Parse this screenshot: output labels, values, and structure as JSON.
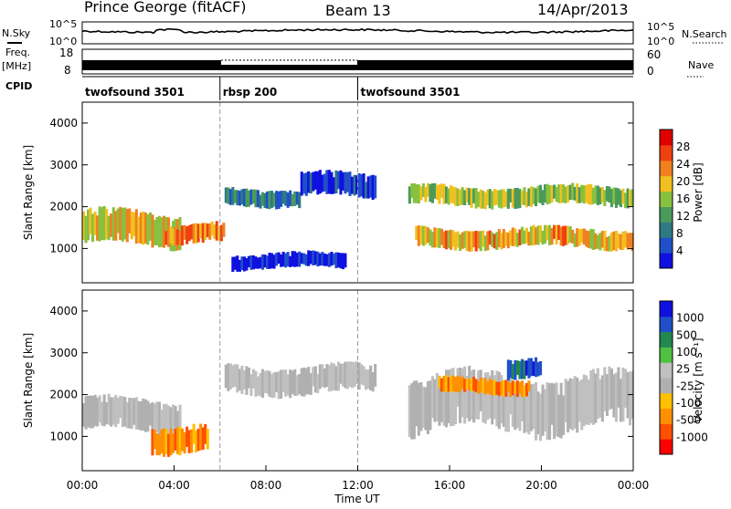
{
  "header": {
    "station": "Prince George (fitACF)",
    "beam": "Beam 13",
    "date": "14/Apr/2013"
  },
  "side_labels": {
    "nsky": "N.Sky",
    "freq_line1": "Freq.",
    "freq_line2": "[MHz]",
    "cpid": "CPID",
    "nsearch": "N.Search",
    "nave": "Nave"
  },
  "strip_ticks": {
    "nsky_top": "10^5",
    "nsky_bottom": "10^0",
    "nsearch_top": "10^5",
    "nsearch_bottom": "10^0",
    "freq_top": "18",
    "freq_bottom": "8",
    "nave_top": "60",
    "nave_bottom": "0"
  },
  "cpid_segments": [
    {
      "label": "twofsound 3501",
      "start_hour": 0
    },
    {
      "label": "rbsp 200",
      "start_hour": 6
    },
    {
      "label": "twofsound 3501",
      "start_hour": 12
    }
  ],
  "chart_data": [
    {
      "type": "heatmap",
      "ylabel": "Slant Range [km]",
      "colorbar_label": "Power [dB]",
      "x_range_hours": [
        0,
        24
      ],
      "y_range_km": [
        180,
        4500
      ],
      "yticks": [
        "1000",
        "2000",
        "3000",
        "4000"
      ],
      "colorbar_ticks": [
        "4",
        "8",
        "12",
        "16",
        "20",
        "24",
        "28"
      ],
      "colorbar_range": [
        0,
        32
      ],
      "colorscale": [
        "#1010e0",
        "#2050c8",
        "#2e7a84",
        "#4a9a5a",
        "#88c040",
        "#f0c020",
        "#f08020",
        "#f04010",
        "#e00000"
      ],
      "echo_bands": [
        {
          "t0": 0,
          "t1": 4.3,
          "r0": 1050,
          "r1": 1900,
          "peak_dB": 26
        },
        {
          "t0": 3.5,
          "t1": 6.2,
          "r0": 1100,
          "r1": 1600,
          "peak_dB": 30
        },
        {
          "t0": 6.2,
          "t1": 9.5,
          "r0": 2000,
          "r1": 2450,
          "peak_dB": 14
        },
        {
          "t0": 9.5,
          "t1": 12.8,
          "r0": 2200,
          "r1": 2800,
          "peak_dB": 8
        },
        {
          "t0": 6.5,
          "t1": 11.5,
          "r0": 500,
          "r1": 900,
          "peak_dB": 6
        },
        {
          "t0": 14.2,
          "t1": 24,
          "r0": 2000,
          "r1": 2500,
          "peak_dB": 22
        },
        {
          "t0": 14.5,
          "t1": 24,
          "r0": 1000,
          "r1": 1500,
          "peak_dB": 27
        }
      ]
    },
    {
      "type": "heatmap",
      "ylabel": "Slant Range [km]",
      "colorbar_label": "Velocity [m s⁻¹]",
      "xlabel": "Time UT",
      "x_range_hours": [
        0,
        24
      ],
      "y_range_km": [
        180,
        4500
      ],
      "xticks": [
        "00:00",
        "04:00",
        "08:00",
        "12:00",
        "16:00",
        "20:00",
        "00:00"
      ],
      "yticks": [
        "1000",
        "2000",
        "3000",
        "4000"
      ],
      "colorbar_ticks": [
        "1000",
        "500",
        "100",
        "25",
        "-25",
        "-100",
        "-500",
        "-1000"
      ],
      "colorscale": [
        "#ff0000",
        "#ff5000",
        "#ff9000",
        "#ffc000",
        "#b0b0b0",
        "#c0c0c0",
        "#50c040",
        "#208850",
        "#2050c8",
        "#1010e0"
      ],
      "echo_bands": [
        {
          "t0": 0,
          "t1": 4.3,
          "r0": 1100,
          "r1": 1900,
          "v_ms": 0
        },
        {
          "t0": 3.0,
          "t1": 5.5,
          "r0": 600,
          "r1": 1300,
          "v_ms": -300
        },
        {
          "t0": 6.2,
          "t1": 12.8,
          "r0": 2000,
          "r1": 2700,
          "v_ms": 0
        },
        {
          "t0": 14.2,
          "t1": 24,
          "r0": 1100,
          "r1": 2500,
          "v_ms": 0
        },
        {
          "t0": 15.5,
          "t1": 19.5,
          "r0": 2000,
          "r1": 2400,
          "v_ms": -200
        },
        {
          "t0": 18.5,
          "t1": 20,
          "r0": 2400,
          "r1": 2900,
          "v_ms": 600
        }
      ]
    }
  ]
}
